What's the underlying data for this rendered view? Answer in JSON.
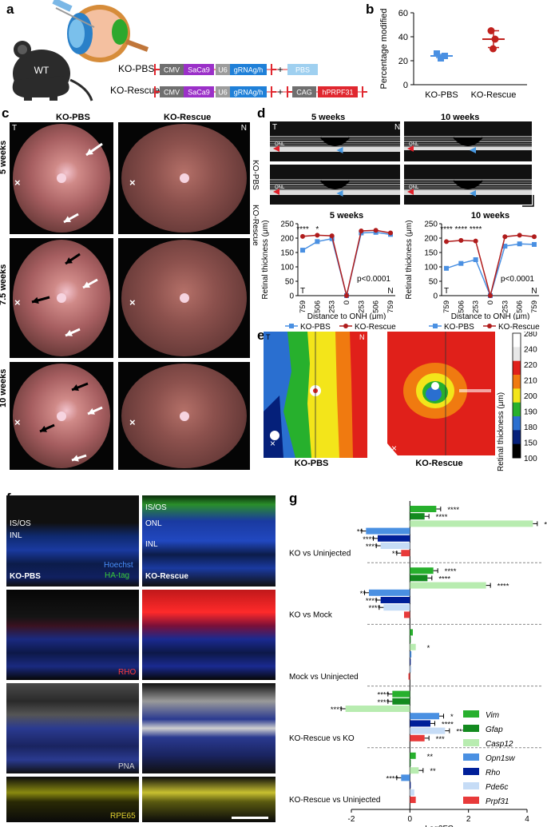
{
  "panel_labels": {
    "a": "a",
    "b": "b",
    "c": "c",
    "d": "d",
    "e": "e",
    "f": "f",
    "g": "g"
  },
  "panel_a": {
    "mouse_label": "WT",
    "row1_label": "KO-PBS",
    "row2_label": "KO-Rescue",
    "row1_boxes": [
      "CMV",
      "SaCa9",
      "U6",
      "gRNAg/h",
      "PBS"
    ],
    "row2_boxes": [
      "CMV",
      "SaCa9",
      "U6",
      "gRNAg/h",
      "CAG",
      "hPRPF31"
    ],
    "plus": "+",
    "colors": {
      "cmv": "#6f6f6f",
      "saca9": "#9b30c8",
      "u6": "#9c9c9c",
      "grna": "#1f80d8",
      "pbs": "#9fd0f0",
      "cag": "#6f6f6f",
      "hprpf31": "#e0272f",
      "itr": "#e0272f"
    }
  },
  "chart_data": [
    {
      "type": "scatter",
      "id": "b",
      "ylabel": "Percentage modified",
      "categories": [
        "KO-PBS",
        "KO-Rescue"
      ],
      "ylim": [
        0,
        60
      ],
      "yticks": [
        0,
        20,
        40,
        60
      ],
      "series": [
        {
          "name": "KO-PBS",
          "points": [
            26,
            24,
            22
          ],
          "mean": 24,
          "sem": 1.3,
          "color": "#4a90e2"
        },
        {
          "name": "KO-Rescue",
          "points": [
            45,
            38,
            30
          ],
          "mean": 38,
          "sem": 7,
          "color": "#c0211d"
        }
      ]
    },
    {
      "type": "line",
      "id": "d-5weeks",
      "title": "5 weeks",
      "xlabel": "Distance to ONH (μm)",
      "ylabel": "Retinal thickness (μm)",
      "x": [
        "759",
        "506",
        "253",
        "0",
        "253",
        "506",
        "759"
      ],
      "ylim": [
        0,
        250
      ],
      "yticks": [
        0,
        50,
        100,
        150,
        200,
        250
      ],
      "side_labels": [
        "T",
        "N"
      ],
      "annotation": "p<0.0001",
      "stars": [
        "****",
        "*"
      ],
      "series": [
        {
          "name": "KO-PBS",
          "values": [
            158,
            188,
            198,
            0,
            218,
            220,
            213
          ],
          "color": "#4a90e2"
        },
        {
          "name": "KO-Rescue",
          "values": [
            206,
            210,
            208,
            0,
            225,
            227,
            218
          ],
          "color": "#b01c1c"
        }
      ]
    },
    {
      "type": "line",
      "id": "d-10weeks",
      "title": "10 weeks",
      "xlabel": "Distance to ONH (μm)",
      "ylabel": "Retinal thickness (μm)",
      "x": [
        "759",
        "506",
        "253",
        "0",
        "253",
        "506",
        "759"
      ],
      "ylim": [
        0,
        250
      ],
      "yticks": [
        0,
        50,
        100,
        150,
        200,
        250
      ],
      "side_labels": [
        "T",
        "N"
      ],
      "annotation": "p<0.0001",
      "stars": [
        "****",
        "****",
        "****"
      ],
      "series": [
        {
          "name": "KO-PBS",
          "values": [
            95,
            112,
            125,
            0,
            172,
            180,
            178
          ],
          "color": "#4a90e2"
        },
        {
          "name": "KO-Rescue",
          "values": [
            188,
            192,
            190,
            0,
            205,
            210,
            205
          ],
          "color": "#b01c1c"
        }
      ]
    },
    {
      "type": "bar",
      "id": "g",
      "xlabel": "Log2FC",
      "xlim": [
        -2,
        4
      ],
      "xticks": [
        -2,
        0,
        2,
        4
      ],
      "genes": [
        "Vim",
        "Gfap",
        "Casp12",
        "Opn1sw",
        "Rho",
        "Pde6c",
        "Prpf31"
      ],
      "colors": [
        "#27b02d",
        "#138a1f",
        "#b8ecb0",
        "#4a90e2",
        "#001f99",
        "#c6dcf6",
        "#e83a3a"
      ],
      "groups": [
        {
          "name": "KO vs Uninjected",
          "values": [
            0.9,
            0.5,
            4.2,
            -1.5,
            -1.1,
            -1.0,
            -0.3
          ],
          "stars": [
            "****",
            "****",
            "****",
            "**",
            "****",
            "****",
            "**"
          ]
        },
        {
          "name": "KO vs Mock",
          "values": [
            0.8,
            0.6,
            2.6,
            -1.4,
            -1.0,
            -0.9,
            -0.2
          ],
          "stars": [
            "****",
            "****",
            "****",
            "**",
            "****",
            "****",
            ""
          ]
        },
        {
          "name": "Mock vs Uninjected",
          "values": [
            0.1,
            0.0,
            0.2,
            0.05,
            0.0,
            0.05,
            -0.05
          ],
          "stars": [
            "",
            "",
            "*",
            "",
            "",
            "",
            ""
          ]
        },
        {
          "name": "KO-Rescue vs KO",
          "values": [
            -0.6,
            -0.6,
            -2.2,
            1.0,
            0.7,
            1.2,
            0.5
          ],
          "stars": [
            "****",
            "****",
            "****",
            "*",
            "****",
            "****",
            "***"
          ]
        },
        {
          "name": "KO-Rescue vs Uninjected",
          "values": [
            0.2,
            0.0,
            0.3,
            -0.3,
            0.0,
            0.15,
            0.2
          ],
          "stars": [
            "**",
            "",
            "**",
            "****",
            "",
            "",
            ""
          ]
        }
      ]
    }
  ],
  "panel_c": {
    "col1": "KO-PBS",
    "col2": "KO-Rescue",
    "rows": [
      "5 weeks",
      "7.5 weeks",
      "10 weeks"
    ],
    "corner_left": "T",
    "corner_right": "N",
    "marker": "×"
  },
  "panel_d_oct": {
    "title_5": "5 weeks",
    "title_10": "10 weeks",
    "row1": "KO-PBS",
    "row2": "KO-Rescue",
    "onl": "ONL",
    "corner_left": "T",
    "corner_right": "N"
  },
  "legend_d": {
    "ko_pbs": "KO-PBS",
    "ko_rescue": "KO-Rescue"
  },
  "panel_e": {
    "label1": "KO-PBS",
    "label2": "KO-Rescue",
    "corner_left": "T",
    "corner_right": "N",
    "marker": "×",
    "colorbar_title": "Retinal thickness (μm)",
    "colorbar_ticks": [
      "280",
      "240",
      "220",
      "210",
      "200",
      "190",
      "180",
      "150",
      "100"
    ],
    "colorbar_colors": [
      "#ffffff",
      "#e8e8e8",
      "#e0201a",
      "#f07a10",
      "#f3e51a",
      "#27b02d",
      "#2a6fd0",
      "#05207a",
      "#000000"
    ]
  },
  "panel_f": {
    "layers_left": [
      "IS/OS",
      "INL"
    ],
    "layers_right": [
      "IS/OS",
      "ONL",
      "INL"
    ],
    "hoechst": "Hoechst",
    "hatag": "HA-tag",
    "ko_pbs": "KO-PBS",
    "ko_rescue": "KO-Rescue",
    "rho": "RHO",
    "pna": "PNA",
    "rpe65": "RPE65"
  }
}
